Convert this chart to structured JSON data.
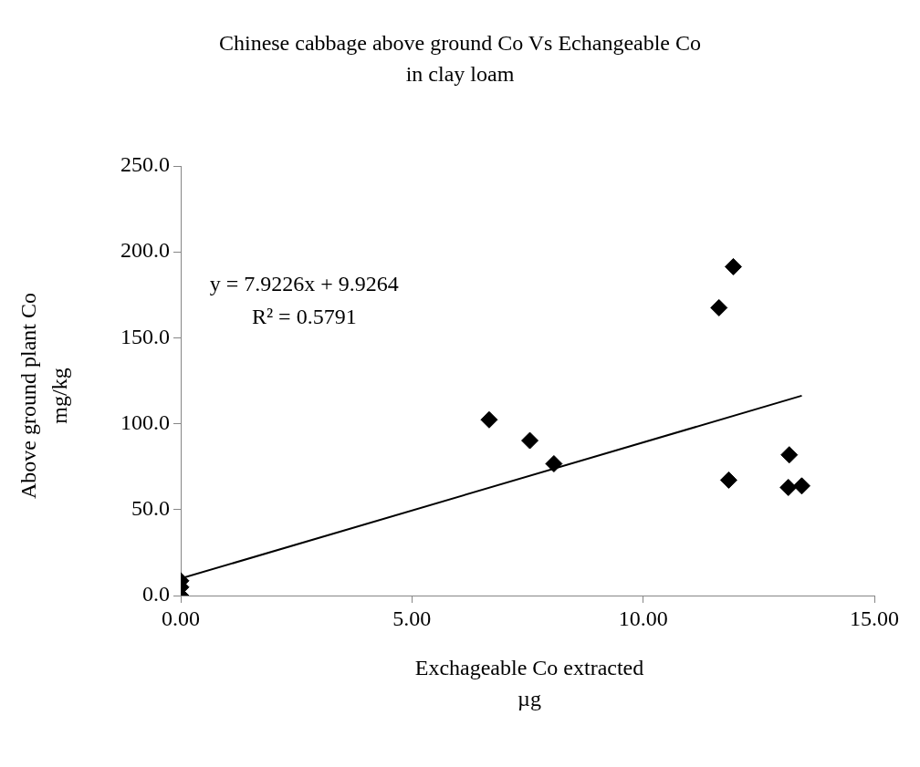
{
  "chart_data": {
    "type": "scatter",
    "title": "Chinese cabbage above ground Co Vs Echangeable Co in clay loam",
    "xlabel": "Exchageable Co extracted µg",
    "ylabel": "Above ground plant Co mg/kg",
    "xlim": [
      0,
      15
    ],
    "xticks": [
      {
        "value": 0,
        "label": "0.00"
      },
      {
        "value": 5,
        "label": "5.00"
      },
      {
        "value": 10,
        "label": "10.00"
      },
      {
        "value": 15,
        "label": "15.00"
      }
    ],
    "ylim": [
      0,
      250
    ],
    "yticks": [
      {
        "value": 0,
        "label": "0.0"
      },
      {
        "value": 50,
        "label": "50.0"
      },
      {
        "value": 100,
        "label": "100.0"
      },
      {
        "value": 150,
        "label": "150.0"
      },
      {
        "value": 200,
        "label": "200.0"
      },
      {
        "value": 250,
        "label": "250.0"
      }
    ],
    "grid": false,
    "legend": false,
    "marker": "diamond",
    "series": [
      {
        "color": "#000000",
        "x": [
          0,
          0,
          0,
          6.67,
          7.55,
          8.07,
          11.64,
          11.95,
          11.85,
          13.16,
          13.14,
          13.43
        ],
        "values": [
          0,
          4.9,
          8.6,
          102.3,
          90.2,
          76.7,
          167.5,
          191.4,
          67.2,
          81.9,
          62.9,
          63.8
        ]
      },
      {
        "type": "line",
        "color": "#000000",
        "marker": "none",
        "x": [
          0,
          13.43
        ],
        "values": [
          9.9,
          116.3
        ]
      }
    ],
    "annotations": [
      "y = 7.9226x + 9.9264",
      "R² = 0.5791"
    ]
  }
}
